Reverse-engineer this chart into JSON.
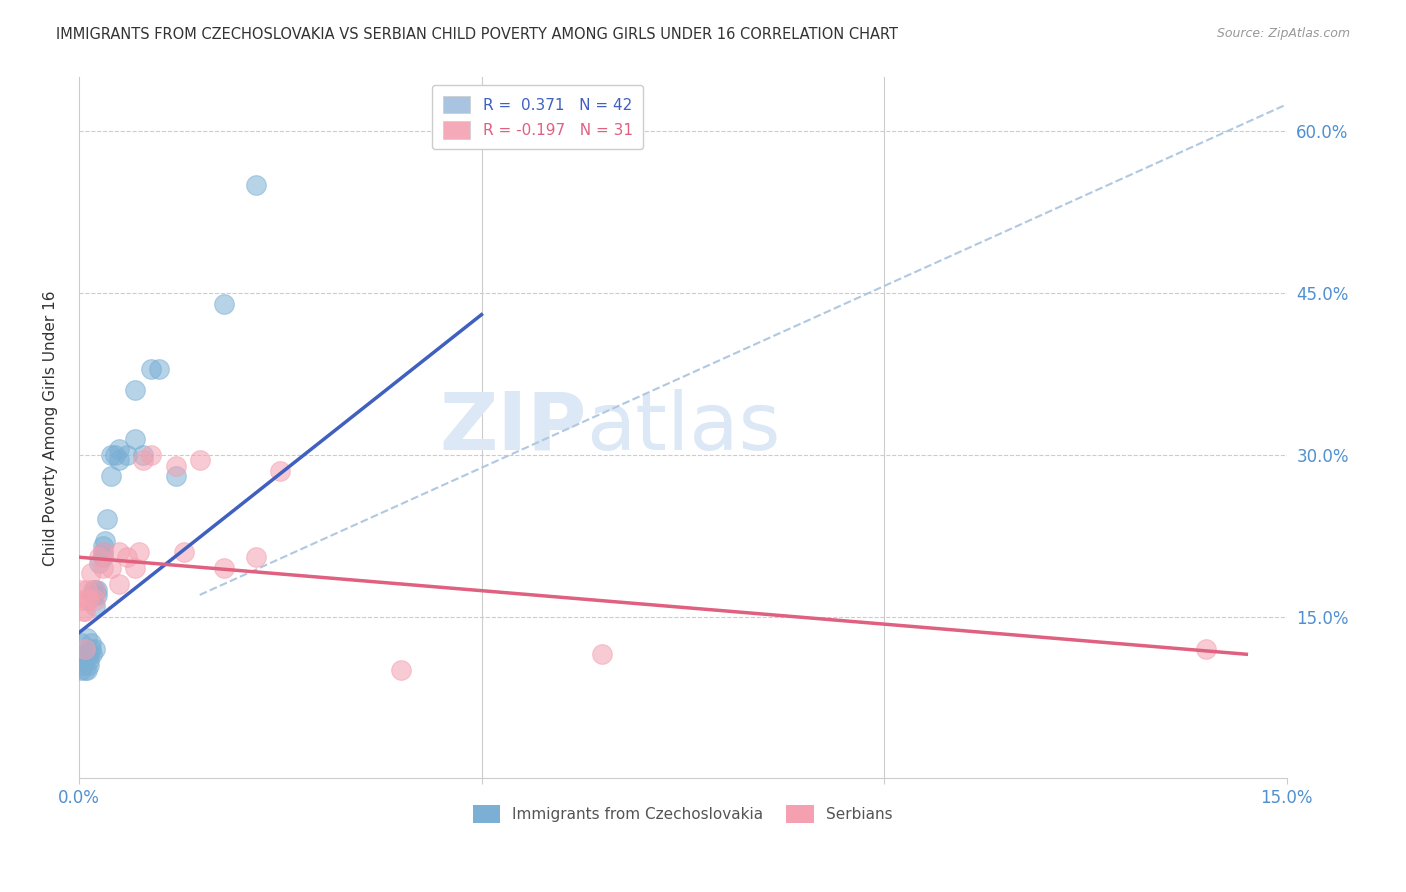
{
  "title": "IMMIGRANTS FROM CZECHOSLOVAKIA VS SERBIAN CHILD POVERTY AMONG GIRLS UNDER 16 CORRELATION CHART",
  "source": "Source: ZipAtlas.com",
  "ylabel": "Child Poverty Among Girls Under 16",
  "ytick_labels": [
    "15.0%",
    "30.0%",
    "45.0%",
    "60.0%"
  ],
  "ytick_values": [
    0.15,
    0.3,
    0.45,
    0.6
  ],
  "xmin": 0.0,
  "xmax": 0.15,
  "ymin": 0.0,
  "ymax": 0.65,
  "legend_r1": "R =  0.371   N = 42",
  "legend_r2": "R = -0.197   N = 31",
  "legend_color1": "#a8c4e0",
  "legend_color2": "#f4aab9",
  "watermark_zip": "ZIP",
  "watermark_atlas": "atlas",
  "scatter_blue_x": [
    0.0003,
    0.0003,
    0.0005,
    0.0007,
    0.0008,
    0.0009,
    0.001,
    0.001,
    0.001,
    0.0012,
    0.0013,
    0.0013,
    0.0015,
    0.0015,
    0.0016,
    0.0017,
    0.0018,
    0.002,
    0.002,
    0.002,
    0.0022,
    0.0023,
    0.0025,
    0.003,
    0.003,
    0.003,
    0.0032,
    0.0035,
    0.004,
    0.004,
    0.0045,
    0.005,
    0.005,
    0.006,
    0.007,
    0.007,
    0.008,
    0.009,
    0.01,
    0.012,
    0.018,
    0.022
  ],
  "scatter_blue_y": [
    0.1,
    0.125,
    0.105,
    0.1,
    0.115,
    0.115,
    0.1,
    0.115,
    0.13,
    0.105,
    0.11,
    0.115,
    0.12,
    0.125,
    0.115,
    0.17,
    0.175,
    0.12,
    0.16,
    0.175,
    0.17,
    0.175,
    0.2,
    0.205,
    0.21,
    0.215,
    0.22,
    0.24,
    0.28,
    0.3,
    0.3,
    0.295,
    0.305,
    0.3,
    0.315,
    0.36,
    0.3,
    0.38,
    0.38,
    0.28,
    0.44,
    0.55
  ],
  "scatter_pink_x": [
    0.0003,
    0.0004,
    0.0005,
    0.0007,
    0.0008,
    0.001,
    0.001,
    0.0012,
    0.0015,
    0.002,
    0.002,
    0.0025,
    0.003,
    0.003,
    0.004,
    0.005,
    0.005,
    0.006,
    0.007,
    0.0075,
    0.008,
    0.009,
    0.012,
    0.013,
    0.015,
    0.018,
    0.022,
    0.025,
    0.04,
    0.065,
    0.14
  ],
  "scatter_pink_y": [
    0.175,
    0.165,
    0.155,
    0.155,
    0.12,
    0.165,
    0.175,
    0.165,
    0.19,
    0.165,
    0.175,
    0.205,
    0.195,
    0.21,
    0.195,
    0.18,
    0.21,
    0.205,
    0.195,
    0.21,
    0.295,
    0.3,
    0.29,
    0.21,
    0.295,
    0.195,
    0.205,
    0.285,
    0.1,
    0.115,
    0.12
  ],
  "blue_line_x": [
    0.0,
    0.05
  ],
  "blue_line_y": [
    0.135,
    0.43
  ],
  "pink_line_x": [
    0.0,
    0.145
  ],
  "pink_line_y": [
    0.205,
    0.115
  ],
  "dash_line_x": [
    0.015,
    0.15
  ],
  "dash_line_y": [
    0.17,
    0.625
  ],
  "blue_scatter_color": "#7bafd4",
  "pink_scatter_color": "#f4a0b0",
  "blue_line_color": "#4060c0",
  "pink_line_color": "#e06080",
  "dash_color": "#b0c8e0",
  "watermark_color": "#dce8f5",
  "axis_color": "#cccccc",
  "title_color": "#333333",
  "right_axis_color": "#5090d0",
  "xtick_color": "#5090d0"
}
